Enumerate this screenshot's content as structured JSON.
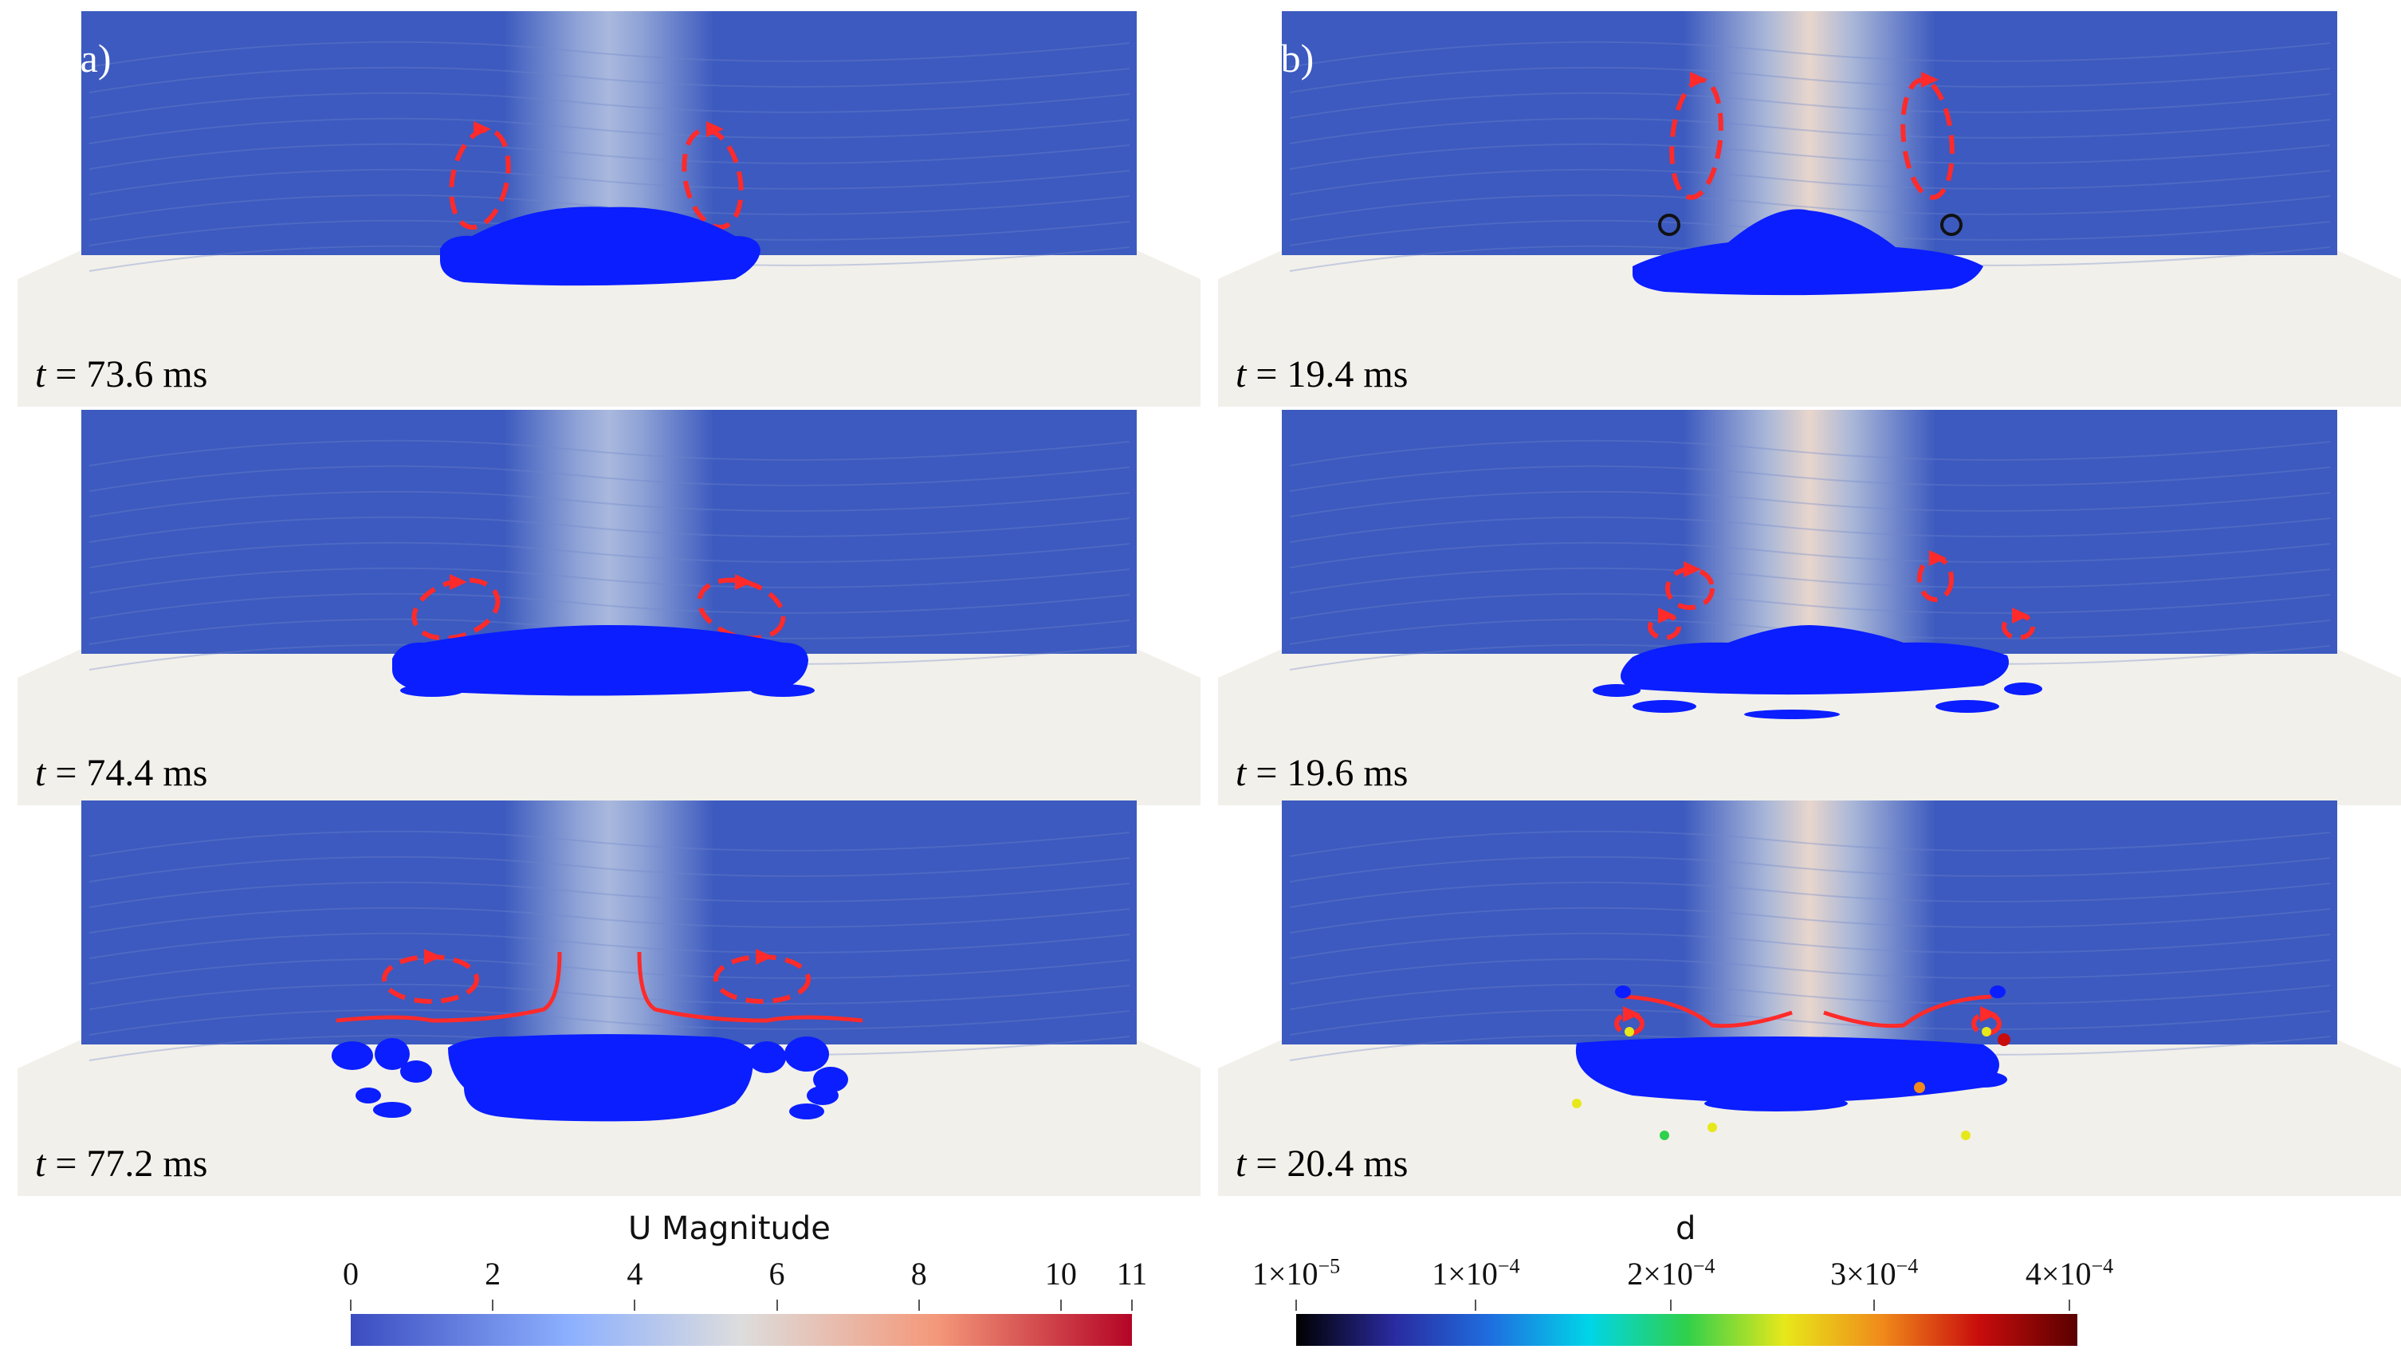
{
  "panels": {
    "a_label": "(a)",
    "b_label": "(b)",
    "times_a": [
      "73.6 ms",
      "74.4 ms",
      "77.2 ms"
    ],
    "times_b": [
      "19.4 ms",
      "19.6 ms",
      "20.4 ms"
    ],
    "time_var": "t",
    "eq": "="
  },
  "colorbar_u": {
    "title": "U Magnitude",
    "ticks": [
      "0",
      "2",
      "4",
      "6",
      "8",
      "10",
      "11"
    ],
    "range": [
      0,
      11
    ],
    "colors": [
      "#3b4cc0",
      "#dddddd",
      "#b40426"
    ]
  },
  "colorbar_d": {
    "title": "d",
    "tick_mantissa": [
      "1",
      "1",
      "2",
      "3",
      "4"
    ],
    "tick_exponent": [
      "−5",
      "−4",
      "−4",
      "−4",
      "−4"
    ],
    "times_sign": "×10",
    "colors": [
      "#000000",
      "#2a2aa0",
      "#1f6fe0",
      "#00d5e8",
      "#2fd04b",
      "#e7e81a",
      "#f08a1a",
      "#c80c0c",
      "#5a0000"
    ]
  },
  "colors": {
    "fluid_blue": "#0a1eff",
    "domain_blue": "#3c5abf",
    "floor": "#f2f0ea",
    "vortex_red": "#ff2a2a"
  }
}
